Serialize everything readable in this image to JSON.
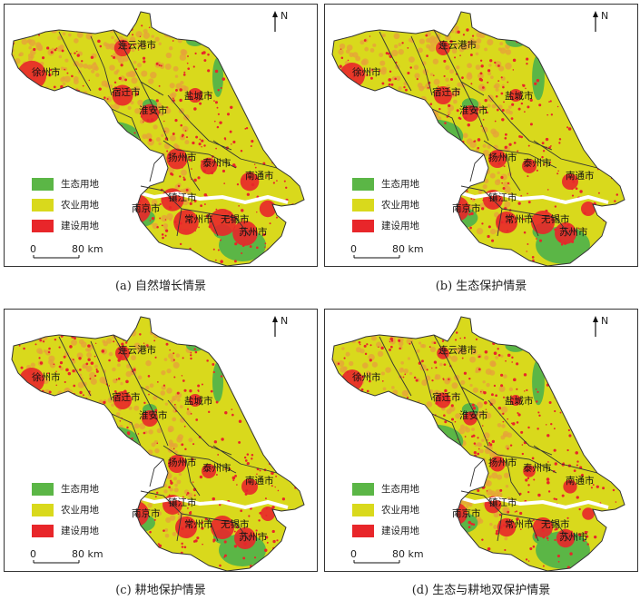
{
  "colors": {
    "ecological": "#5bb646",
    "agricultural": "#d9d91c",
    "construction": "#e8262a",
    "orange_mix": "#e6a23a",
    "boundary": "#333333",
    "water": "#ffffff"
  },
  "legend": {
    "ecological": "生态用地",
    "agricultural": "农业用地",
    "construction": "建设用地"
  },
  "scale": {
    "zero": "0",
    "distance": "80 km"
  },
  "north": "N",
  "cities": {
    "lianyungang": "连云港市",
    "xuzhou": "徐州市",
    "suqian": "宿迁市",
    "yancheng": "盐城市",
    "huaian": "淮安市",
    "yangzhou": "扬州市",
    "taizhou": "泰州市",
    "nantong": "南通市",
    "zhenjiang": "镇江市",
    "nanjing": "南京市",
    "changzhou": "常州市",
    "wuxi": "无锡市",
    "suzhou": "苏州市"
  },
  "panels": [
    {
      "caption": "(a) 自然增长情景"
    },
    {
      "caption": "(b) 生态保护情景"
    },
    {
      "caption": "(c) 耕地保护情景"
    },
    {
      "caption": "(d) 生态与耕地双保护情景"
    }
  ]
}
